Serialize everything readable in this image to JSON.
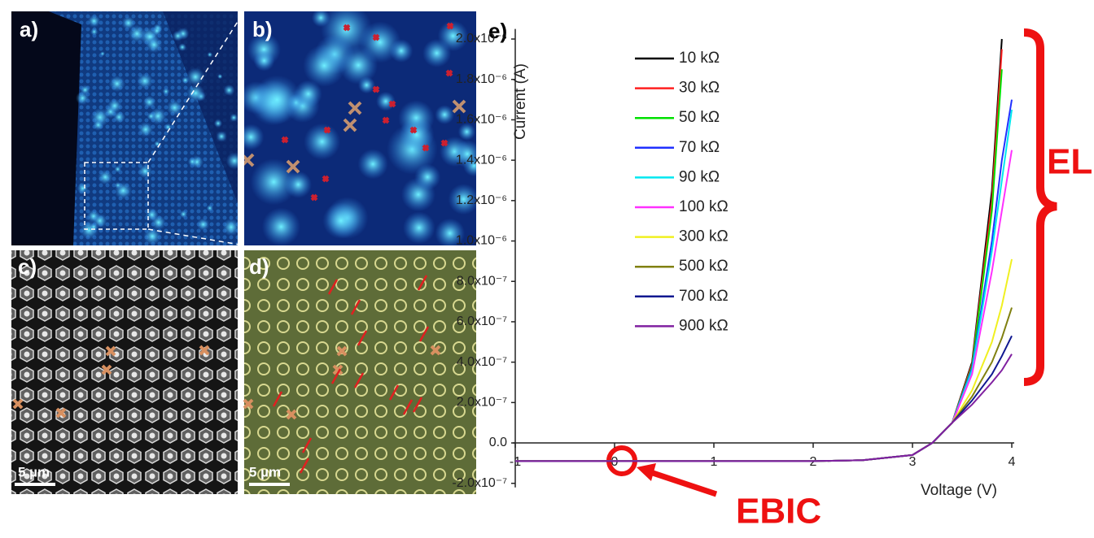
{
  "panels": {
    "a": {
      "label": "a)"
    },
    "b": {
      "label": "b)"
    },
    "c": {
      "label": "c)",
      "scale_bar": "5 µm"
    },
    "d": {
      "label": "d)",
      "scale_bar": "5 µm"
    }
  },
  "chart_data": {
    "type": "line",
    "panel_label": "e)",
    "x_label": "Voltage (V)",
    "y_label": "Current (A)",
    "annotations": [
      "EL",
      "EBIC"
    ],
    "x": [
      -1,
      0,
      1,
      2,
      2.5,
      3,
      3.2,
      3.4,
      3.6,
      3.8,
      3.9,
      4.0
    ],
    "xlim": [
      -1,
      4
    ],
    "xticks": [
      -1,
      0,
      1,
      2,
      3,
      4
    ],
    "ylim": [
      -2.2e-07,
      2.05e-06
    ],
    "yticks": [
      {
        "value": -2e-07,
        "label": "-2.0x10⁻⁷"
      },
      {
        "value": 0,
        "label": "0.0"
      },
      {
        "value": 2e-07,
        "label": "2.0x10⁻⁷"
      },
      {
        "value": 4e-07,
        "label": "4.0x10⁻⁷"
      },
      {
        "value": 6e-07,
        "label": "6.0x10⁻⁷"
      },
      {
        "value": 8e-07,
        "label": "8.0x10⁻⁷"
      },
      {
        "value": 1e-06,
        "label": "1.0x10⁻⁶"
      },
      {
        "value": 1.2e-06,
        "label": "1.2x10⁻⁶"
      },
      {
        "value": 1.4e-06,
        "label": "1.4x10⁻⁶"
      },
      {
        "value": 1.6e-06,
        "label": "1.6x10⁻⁶"
      },
      {
        "value": 1.8e-06,
        "label": "1.8x10⁻⁶"
      },
      {
        "value": 2e-06,
        "label": "2.0x10⁻⁶"
      }
    ],
    "series": [
      {
        "name": "10 kΩ",
        "color": "#000000",
        "values": [
          -9e-08,
          -9e-08,
          -9e-08,
          -9e-08,
          -8.5e-08,
          -6e-08,
          0,
          1e-07,
          4e-07,
          1.25e-06,
          2e-06,
          null
        ]
      },
      {
        "name": "30 kΩ",
        "color": "#ff2020",
        "values": [
          -9e-08,
          -9e-08,
          -9e-08,
          -9e-08,
          -8.5e-08,
          -6e-08,
          0,
          1e-07,
          3.9e-07,
          1.2e-06,
          1.95e-06,
          null
        ]
      },
      {
        "name": "50 kΩ",
        "color": "#00e000",
        "values": [
          -9e-08,
          -9e-08,
          -9e-08,
          -9e-08,
          -8.5e-08,
          -6e-08,
          0,
          1e-07,
          3.8e-07,
          1.15e-06,
          1.85e-06,
          null
        ]
      },
      {
        "name": "70 kΩ",
        "color": "#2030ff",
        "values": [
          -9e-08,
          -9e-08,
          -9e-08,
          -9e-08,
          -8.5e-08,
          -6e-08,
          0,
          1e-07,
          3.7e-07,
          1e-06,
          1.4e-06,
          1.7e-06
        ]
      },
      {
        "name": "90 kΩ",
        "color": "#00e8f0",
        "values": [
          -9e-08,
          -9e-08,
          -9e-08,
          -9e-08,
          -8.5e-08,
          -6e-08,
          0,
          1e-07,
          3.6e-07,
          9.5e-07,
          1.3e-06,
          1.65e-06
        ]
      },
      {
        "name": "100 kΩ",
        "color": "#ff30ff",
        "values": [
          -9e-08,
          -9e-08,
          -9e-08,
          -9e-08,
          -8.5e-08,
          -6e-08,
          0,
          1e-07,
          3.4e-07,
          8.5e-07,
          1.15e-06,
          1.45e-06
        ]
      },
      {
        "name": "300 kΩ",
        "color": "#f0f020",
        "values": [
          -9e-08,
          -9e-08,
          -9e-08,
          -9e-08,
          -8.5e-08,
          -6e-08,
          0,
          1e-07,
          2.6e-07,
          5e-07,
          6.8e-07,
          9.1e-07
        ]
      },
      {
        "name": "500 kΩ",
        "color": "#808010",
        "values": [
          -9e-08,
          -9e-08,
          -9e-08,
          -9e-08,
          -8.5e-08,
          -6e-08,
          0,
          1e-07,
          2.3e-07,
          4e-07,
          5.2e-07,
          6.7e-07
        ]
      },
      {
        "name": "700 kΩ",
        "color": "#101890",
        "values": [
          -9e-08,
          -9e-08,
          -9e-08,
          -9e-08,
          -8.5e-08,
          -6e-08,
          0,
          1e-07,
          2.1e-07,
          3.4e-07,
          4.3e-07,
          5.3e-07
        ]
      },
      {
        "name": "900 kΩ",
        "color": "#8020a0",
        "values": [
          -9e-08,
          -9e-08,
          -9e-08,
          -9e-08,
          -8.5e-08,
          -6e-08,
          0,
          1e-07,
          1.9e-07,
          3e-07,
          3.6e-07,
          4.4e-07
        ]
      }
    ]
  }
}
